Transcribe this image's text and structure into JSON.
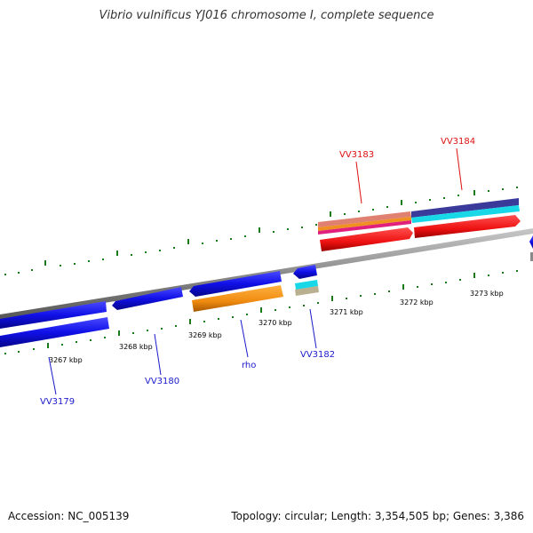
{
  "title": "Vibrio vulnificus YJ016 chromosome I, complete sequence",
  "accession": "Accession: NC_005139",
  "summary": "Topology: circular; Length: 3,354,505 bp; Genes: 3,386",
  "scale_ticks": [
    "3267 kbp",
    "3268 kbp",
    "3269 kbp",
    "3270 kbp",
    "3271 kbp",
    "3272 kbp",
    "3273 kbp"
  ],
  "genes": {
    "vv3179": "VV3179",
    "vv3180": "VV3180",
    "rho": "rho",
    "vv3182": "VV3182",
    "vv3183": "VV3183",
    "vv3184": "VV3184"
  },
  "colors": {
    "backbone": "#8a8a8a",
    "gene_blue": "#1010e8",
    "gene_orange": "#f08c10",
    "gene_red": "#ee1111",
    "gene_cyan": "#18d8e8",
    "gene_navy": "#3a3a9a",
    "label_blue": "#1a1acc",
    "label_red": "#dd1111",
    "tick_green": "#1a7a1a"
  }
}
